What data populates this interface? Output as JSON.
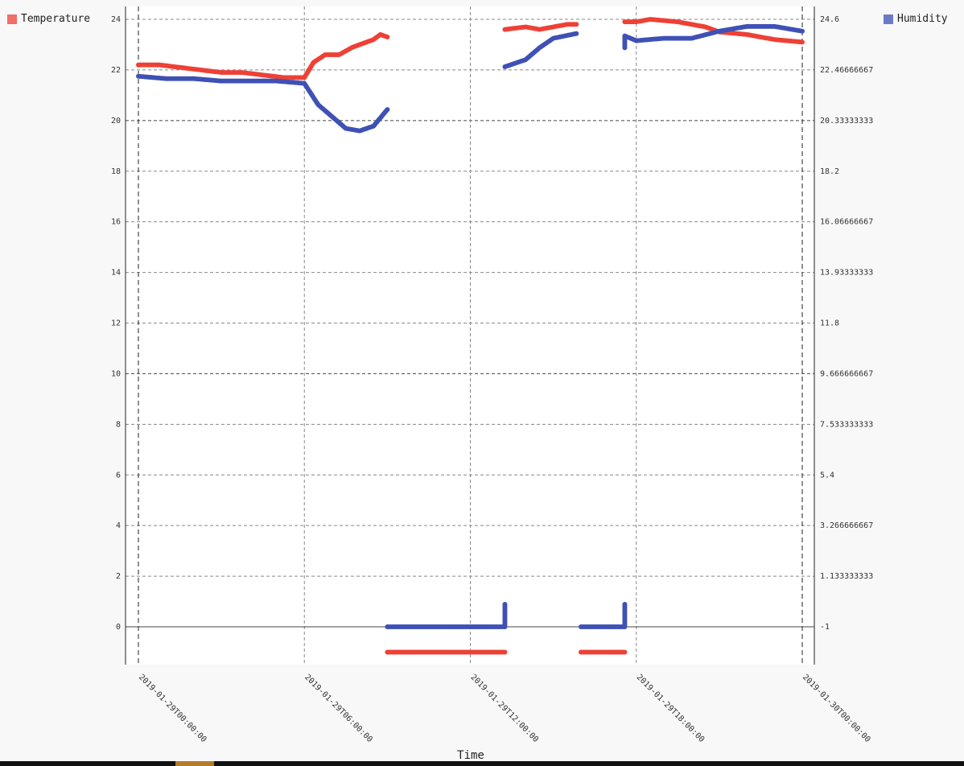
{
  "legend": {
    "temperature": {
      "label": "Temperature",
      "color": "#ee4136"
    },
    "humidity": {
      "label": "Humidity",
      "color": "#3f51b5"
    }
  },
  "chart_data": {
    "type": "scatter",
    "xlabel": "Time",
    "x_ticks": [
      "2019-01-29T00:00:00",
      "2019-01-29T06:00:00",
      "2019-01-29T12:00:00",
      "2019-01-29T18:00:00",
      "2019-01-30T00:00:00"
    ],
    "xlim": [
      "2019-01-29T00:00:00",
      "2019-01-30T00:00:00"
    ],
    "y_left": {
      "ticks": [
        "0",
        "2",
        "4",
        "6",
        "8",
        "10",
        "12",
        "14",
        "16",
        "18",
        "20",
        "22",
        "24"
      ],
      "ylim": [
        -1.5,
        24.5
      ]
    },
    "y_right": {
      "ticks": [
        "-1",
        "1.133333333",
        "3.266666667",
        "5.4",
        "7.533333333",
        "9.666666667",
        "11.8",
        "13.93333333",
        "16.06666667",
        "18.2",
        "20.33333333",
        "22.46666667",
        "24.6"
      ]
    },
    "grid": true,
    "series": [
      {
        "name": "Temperature",
        "axis": "left",
        "color": "#ee4136",
        "points": [
          [
            "2019-01-29T00:00",
            22.2
          ],
          [
            "2019-01-29T00:45",
            22.2
          ],
          [
            "2019-01-29T01:30",
            22.1
          ],
          [
            "2019-01-29T02:15",
            22.0
          ],
          [
            "2019-01-29T03:00",
            21.9
          ],
          [
            "2019-01-29T03:45",
            21.9
          ],
          [
            "2019-01-29T04:30",
            21.8
          ],
          [
            "2019-01-29T05:15",
            21.7
          ],
          [
            "2019-01-29T06:00",
            21.7
          ],
          [
            "2019-01-29T06:20",
            22.3
          ],
          [
            "2019-01-29T06:45",
            22.6
          ],
          [
            "2019-01-29T07:15",
            22.6
          ],
          [
            "2019-01-29T07:45",
            22.9
          ],
          [
            "2019-01-29T08:15",
            23.1
          ],
          [
            "2019-01-29T08:30",
            23.2
          ],
          [
            "2019-01-29T08:45",
            23.4
          ],
          [
            "2019-01-29T09:00",
            23.3
          ],
          [
            "2019-01-29T09:00",
            -1
          ],
          [
            "2019-01-29T10:00",
            -1
          ],
          [
            "2019-01-29T11:00",
            -1
          ],
          [
            "2019-01-29T12:00",
            -1
          ],
          [
            "2019-01-29T13:00",
            -1
          ],
          [
            "2019-01-29T13:15",
            -1
          ],
          [
            "2019-01-29T13:15",
            23.6
          ],
          [
            "2019-01-29T14:00",
            23.7
          ],
          [
            "2019-01-29T14:30",
            23.6
          ],
          [
            "2019-01-29T15:00",
            23.7
          ],
          [
            "2019-01-29T15:30",
            23.8
          ],
          [
            "2019-01-29T15:50",
            23.8
          ],
          [
            "2019-01-29T16:00",
            -1
          ],
          [
            "2019-01-29T16:30",
            -1
          ],
          [
            "2019-01-29T17:00",
            -1
          ],
          [
            "2019-01-29T17:35",
            -1
          ],
          [
            "2019-01-29T17:35",
            23.9
          ],
          [
            "2019-01-29T18:00",
            23.9
          ],
          [
            "2019-01-29T18:30",
            24.0
          ],
          [
            "2019-01-29T19:30",
            23.9
          ],
          [
            "2019-01-29T20:00",
            23.8
          ],
          [
            "2019-01-29T20:30",
            23.7
          ],
          [
            "2019-01-29T21:00",
            23.5
          ],
          [
            "2019-01-29T22:00",
            23.4
          ],
          [
            "2019-01-29T23:00",
            23.2
          ],
          [
            "2019-01-30T00:00",
            23.1
          ]
        ]
      },
      {
        "name": "Humidity",
        "axis": "right",
        "color": "#3f51b5",
        "points": [
          [
            "2019-01-29T00:00",
            22.2
          ],
          [
            "2019-01-29T01:00",
            22.1
          ],
          [
            "2019-01-29T02:00",
            22.1
          ],
          [
            "2019-01-29T03:00",
            22.0
          ],
          [
            "2019-01-29T04:00",
            22.0
          ],
          [
            "2019-01-29T05:00",
            22.0
          ],
          [
            "2019-01-29T06:00",
            21.9
          ],
          [
            "2019-01-29T06:30",
            21.0
          ],
          [
            "2019-01-29T07:00",
            20.5
          ],
          [
            "2019-01-29T07:30",
            20.0
          ],
          [
            "2019-01-29T08:00",
            19.9
          ],
          [
            "2019-01-29T08:30",
            20.1
          ],
          [
            "2019-01-29T09:00",
            20.8
          ],
          [
            "2019-01-29T09:00",
            -1
          ],
          [
            "2019-01-29T10:00",
            -1
          ],
          [
            "2019-01-29T11:00",
            -1
          ],
          [
            "2019-01-29T12:00",
            -1
          ],
          [
            "2019-01-29T13:00",
            -1
          ],
          [
            "2019-01-29T13:15",
            -1
          ],
          [
            "2019-01-29T13:15",
            -0.05
          ],
          [
            "2019-01-29T13:15",
            22.6
          ],
          [
            "2019-01-29T14:00",
            22.9
          ],
          [
            "2019-01-29T14:30",
            23.4
          ],
          [
            "2019-01-29T15:00",
            23.8
          ],
          [
            "2019-01-29T15:50",
            24.0
          ],
          [
            "2019-01-29T16:00",
            -1
          ],
          [
            "2019-01-29T16:30",
            -1
          ],
          [
            "2019-01-29T17:00",
            -1
          ],
          [
            "2019-01-29T17:35",
            -1
          ],
          [
            "2019-01-29T17:35",
            -0.05
          ],
          [
            "2019-01-29T17:35",
            23.4
          ],
          [
            "2019-01-29T17:35",
            23.9
          ],
          [
            "2019-01-29T18:00",
            23.7
          ],
          [
            "2019-01-29T19:00",
            23.8
          ],
          [
            "2019-01-29T20:00",
            23.8
          ],
          [
            "2019-01-29T21:00",
            24.1
          ],
          [
            "2019-01-29T22:00",
            24.3
          ],
          [
            "2019-01-29T23:00",
            24.3
          ],
          [
            "2019-01-30T00:00",
            24.1
          ]
        ]
      }
    ]
  }
}
